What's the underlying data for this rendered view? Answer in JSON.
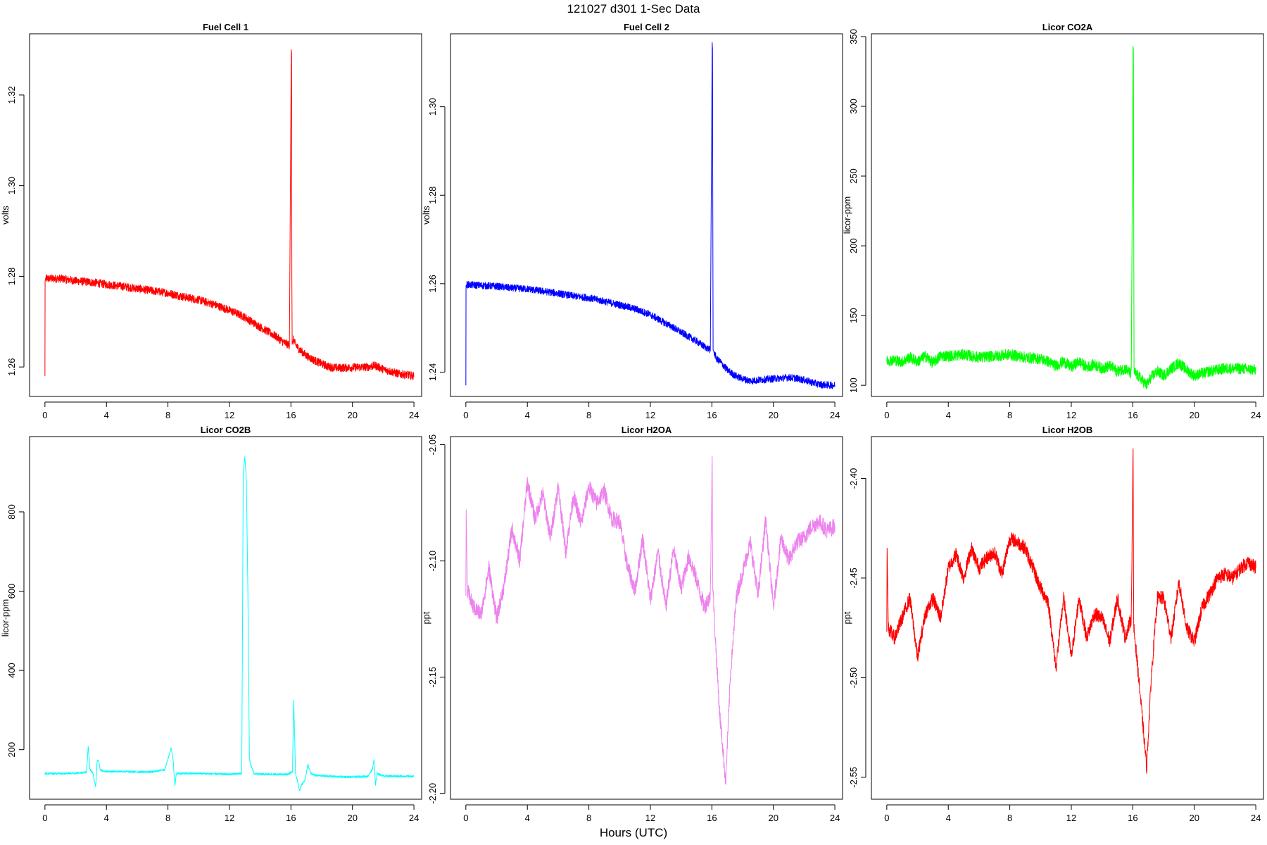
{
  "figure": {
    "title": "121027   d301   1-Sec Data",
    "xlabel": "Hours (UTC)"
  },
  "chart_data": [
    {
      "type": "line",
      "title": "Fuel Cell 1",
      "xlabel": "",
      "ylabel": "volts",
      "color": "#ff0000",
      "noise": 0.0009,
      "xlim": [
        -1,
        24.5
      ],
      "ylim": [
        1.2535,
        1.3335
      ],
      "xticks": [
        0,
        4,
        8,
        12,
        16,
        20,
        24
      ],
      "yticks": [
        1.26,
        1.28,
        1.3,
        1.32
      ],
      "ytick_labels": [
        "1.26",
        "1.28",
        "1.30",
        "1.32"
      ],
      "x": [
        0,
        0.01,
        0.05,
        1,
        2,
        3,
        4,
        5,
        6,
        7,
        8,
        9,
        10,
        11,
        12,
        12.5,
        13,
        13.3,
        14,
        15,
        15.5,
        15.9,
        16.02,
        16.04,
        16.06,
        16.08,
        16.15,
        16.3,
        16.5,
        17,
        17.5,
        18,
        18.5,
        19,
        20,
        21,
        21.5,
        22,
        23,
        24
      ],
      "y": [
        1.258,
        1.279,
        1.2795,
        1.2795,
        1.279,
        1.2787,
        1.2782,
        1.2778,
        1.2773,
        1.2768,
        1.2763,
        1.2755,
        1.2748,
        1.2738,
        1.2725,
        1.2718,
        1.271,
        1.2703,
        1.2688,
        1.2668,
        1.2655,
        1.2648,
        1.33,
        1.329,
        1.28,
        1.265,
        1.266,
        1.265,
        1.264,
        1.2625,
        1.2615,
        1.2607,
        1.26,
        1.2598,
        1.2599,
        1.26,
        1.2603,
        1.2595,
        1.2585,
        1.258
      ]
    },
    {
      "type": "line",
      "title": "Fuel Cell 2",
      "xlabel": "",
      "ylabel": "volts",
      "color": "#0000ff",
      "noise": 0.0008,
      "xlim": [
        -1,
        24.5
      ],
      "ylim": [
        1.2345,
        1.3165
      ],
      "xticks": [
        0,
        4,
        8,
        12,
        16,
        20,
        24
      ],
      "yticks": [
        1.24,
        1.26,
        1.28,
        1.3
      ],
      "ytick_labels": [
        "1.24",
        "1.26",
        "1.28",
        "1.30"
      ],
      "x": [
        0,
        0.01,
        0.05,
        1,
        2,
        3,
        4,
        5,
        6,
        7,
        8,
        9,
        10,
        11,
        12,
        12.5,
        13,
        13.3,
        14,
        15,
        15.5,
        15.9,
        16.02,
        16.04,
        16.06,
        16.08,
        16.15,
        16.3,
        16.5,
        17,
        17.5,
        18,
        18.5,
        19,
        20,
        21,
        21.5,
        22,
        23,
        24
      ],
      "y": [
        1.237,
        1.2595,
        1.2598,
        1.2596,
        1.2594,
        1.259,
        1.2588,
        1.2583,
        1.2578,
        1.2572,
        1.2568,
        1.256,
        1.2552,
        1.2543,
        1.253,
        1.252,
        1.251,
        1.2505,
        1.249,
        1.247,
        1.2458,
        1.245,
        1.3145,
        1.313,
        1.28,
        1.245,
        1.2445,
        1.243,
        1.2425,
        1.2405,
        1.2392,
        1.2385,
        1.238,
        1.2382,
        1.2385,
        1.2388,
        1.2386,
        1.2382,
        1.2372,
        1.237
      ]
    },
    {
      "type": "line",
      "title": "Licor CO2A",
      "xlabel": "",
      "ylabel": "licor-ppm",
      "color": "#00ff00",
      "noise": 4,
      "xlim": [
        -1,
        24.5
      ],
      "ylim": [
        92,
        352
      ],
      "xticks": [
        0,
        4,
        8,
        12,
        16,
        20,
        24
      ],
      "yticks": [
        100,
        150,
        200,
        250,
        300,
        350
      ],
      "ytick_labels": [
        "100",
        "150",
        "200",
        "250",
        "300",
        "350"
      ],
      "x": [
        0,
        0.5,
        1,
        1.5,
        2,
        2.5,
        3,
        3.5,
        4,
        5,
        6,
        7,
        8,
        9,
        10,
        10.5,
        11,
        11.5,
        12,
        12.5,
        13,
        13.5,
        14,
        14.5,
        15,
        15.5,
        15.9,
        16.02,
        16.04,
        16.08,
        16.2,
        16.5,
        16.9,
        17.2,
        17.6,
        18,
        18.5,
        19,
        19.5,
        20,
        21,
        22,
        23,
        24
      ],
      "y": [
        118,
        118,
        117,
        120,
        117,
        121,
        116,
        121,
        121,
        122,
        120,
        121,
        122,
        120,
        119,
        117,
        114,
        117,
        113,
        117,
        113,
        115,
        112,
        114,
        110,
        112,
        108,
        343,
        340,
        110,
        108,
        105,
        100,
        106,
        110,
        107,
        112,
        116,
        111,
        107,
        110,
        112,
        112,
        111
      ]
    },
    {
      "type": "line",
      "title": "Licor CO2B",
      "xlabel": "",
      "ylabel": "licor-ppm",
      "color": "#00ffff",
      "noise": 2.5,
      "xlim": [
        -1,
        24.5
      ],
      "ylim": [
        75,
        990
      ],
      "xticks": [
        0,
        4,
        8,
        12,
        16,
        20,
        24
      ],
      "yticks": [
        200,
        400,
        600,
        800
      ],
      "ytick_labels": [
        "200",
        "400",
        "600",
        "800"
      ],
      "x": [
        0,
        1,
        2,
        2.7,
        2.82,
        2.92,
        3.1,
        3.3,
        3.4,
        3.5,
        3.6,
        4,
        5,
        6,
        7,
        7.8,
        8.1,
        8.22,
        8.35,
        8.45,
        8.55,
        9,
        10,
        11,
        12,
        12.8,
        12.9,
        13,
        13.1,
        13.2,
        13.3,
        13.4,
        13.5,
        13.6,
        14,
        15,
        15.8,
        16.1,
        16.18,
        16.3,
        16.45,
        16.55,
        16.7,
        16.9,
        17.1,
        17.3,
        17.6,
        18,
        19,
        20,
        21,
        21.3,
        21.4,
        21.5,
        21.6,
        22,
        23,
        24
      ],
      "y": [
        140,
        140,
        141,
        143,
        210,
        150,
        143,
        105,
        175,
        172,
        148,
        145,
        145,
        144,
        144,
        150,
        190,
        205,
        170,
        108,
        140,
        140,
        140,
        139,
        138,
        140,
        900,
        940,
        880,
        600,
        175,
        160,
        150,
        140,
        138,
        138,
        138,
        145,
        325,
        140,
        118,
        95,
        112,
        122,
        162,
        140,
        135,
        134,
        132,
        131,
        133,
        150,
        175,
        110,
        140,
        134,
        133,
        133
      ]
    },
    {
      "type": "line",
      "title": "Licor H2OA",
      "xlabel": "",
      "ylabel": "ppt",
      "color": "#ee82ee",
      "noise": 0.0035,
      "xlim": [
        -1,
        24.5
      ],
      "ylim": [
        -2.2025,
        -2.0465
      ],
      "xticks": [
        0,
        4,
        8,
        12,
        16,
        20,
        24
      ],
      "yticks": [
        -2.2,
        -2.15,
        -2.1,
        -2.05
      ],
      "ytick_labels": [
        "-2.20",
        "-2.15",
        "-2.10",
        "-2.05"
      ],
      "x": [
        0,
        0.02,
        0.1,
        0.5,
        1,
        1.5,
        2,
        2.5,
        3,
        3.5,
        4,
        4.5,
        5,
        5.5,
        6,
        6.5,
        7,
        7.5,
        8,
        8.5,
        9,
        9.5,
        10,
        10.5,
        11,
        11.5,
        12,
        12.5,
        13,
        13.5,
        14,
        14.5,
        15,
        15.5,
        15.9,
        16.02,
        16.06,
        16.2,
        16.5,
        16.9,
        17.2,
        17.6,
        18,
        18.5,
        19,
        19.5,
        20,
        20.5,
        21,
        21.5,
        22,
        22.5,
        23,
        23.5,
        24
      ],
      "y": [
        -2.115,
        -2.078,
        -2.113,
        -2.12,
        -2.123,
        -2.103,
        -2.125,
        -2.11,
        -2.086,
        -2.1,
        -2.066,
        -2.082,
        -2.071,
        -2.09,
        -2.068,
        -2.096,
        -2.072,
        -2.084,
        -2.068,
        -2.075,
        -2.07,
        -2.082,
        -2.083,
        -2.102,
        -2.113,
        -2.09,
        -2.117,
        -2.096,
        -2.12,
        -2.095,
        -2.112,
        -2.098,
        -2.108,
        -2.12,
        -2.115,
        -2.055,
        -2.11,
        -2.13,
        -2.165,
        -2.195,
        -2.15,
        -2.115,
        -2.105,
        -2.092,
        -2.115,
        -2.082,
        -2.12,
        -2.09,
        -2.1,
        -2.092,
        -2.09,
        -2.085,
        -2.083,
        -2.087,
        -2.085
      ]
    },
    {
      "type": "line",
      "title": "Licor H2OB",
      "xlabel": "",
      "ylabel": "ppt",
      "color": "#ff0000",
      "noise": 0.0035,
      "xlim": [
        -1,
        24.5
      ],
      "ylim": [
        -2.561,
        -2.379
      ],
      "xticks": [
        0,
        4,
        8,
        12,
        16,
        20,
        24
      ],
      "yticks": [
        -2.55,
        -2.5,
        -2.45,
        -2.4
      ],
      "ytick_labels": [
        "-2.55",
        "-2.50",
        "-2.45",
        "-2.40"
      ],
      "x": [
        0,
        0.02,
        0.1,
        0.5,
        1,
        1.5,
        2,
        2.5,
        3,
        3.5,
        4,
        4.5,
        5,
        5.5,
        6,
        6.5,
        7,
        7.5,
        8,
        8.5,
        9,
        9.5,
        10,
        10.5,
        11,
        11.5,
        12,
        12.5,
        13,
        13.5,
        14,
        14.5,
        15,
        15.5,
        15.9,
        16.02,
        16.06,
        16.2,
        16.5,
        16.9,
        17.2,
        17.6,
        18,
        18.5,
        19,
        19.5,
        20,
        20.5,
        21,
        21.5,
        22,
        22.5,
        23,
        23.5,
        24
      ],
      "y": [
        -2.477,
        -2.435,
        -2.475,
        -2.48,
        -2.47,
        -2.46,
        -2.49,
        -2.468,
        -2.46,
        -2.47,
        -2.445,
        -2.438,
        -2.45,
        -2.435,
        -2.445,
        -2.44,
        -2.437,
        -2.448,
        -2.43,
        -2.432,
        -2.435,
        -2.445,
        -2.455,
        -2.462,
        -2.495,
        -2.46,
        -2.49,
        -2.46,
        -2.48,
        -2.468,
        -2.47,
        -2.482,
        -2.46,
        -2.48,
        -2.47,
        -2.385,
        -2.475,
        -2.485,
        -2.51,
        -2.545,
        -2.5,
        -2.46,
        -2.46,
        -2.48,
        -2.452,
        -2.475,
        -2.482,
        -2.465,
        -2.458,
        -2.45,
        -2.448,
        -2.45,
        -2.445,
        -2.442,
        -2.445
      ]
    }
  ]
}
